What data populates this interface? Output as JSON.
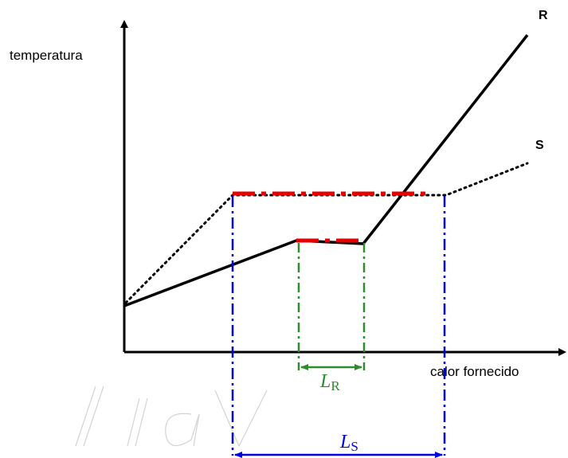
{
  "axes": {
    "y_label": "temperatura",
    "x_label": "calor fornecido"
  },
  "curves": {
    "r_label": "R",
    "s_label": "S"
  },
  "intervals": {
    "lr": {
      "main": "L",
      "sub": "R",
      "color": "#2e8b2e"
    },
    "ls": {
      "main": "L",
      "sub": "S",
      "color": "#0000e6"
    }
  },
  "colors": {
    "plateau": "#e60000",
    "axis": "#000000"
  },
  "watermark": "Lia"
}
